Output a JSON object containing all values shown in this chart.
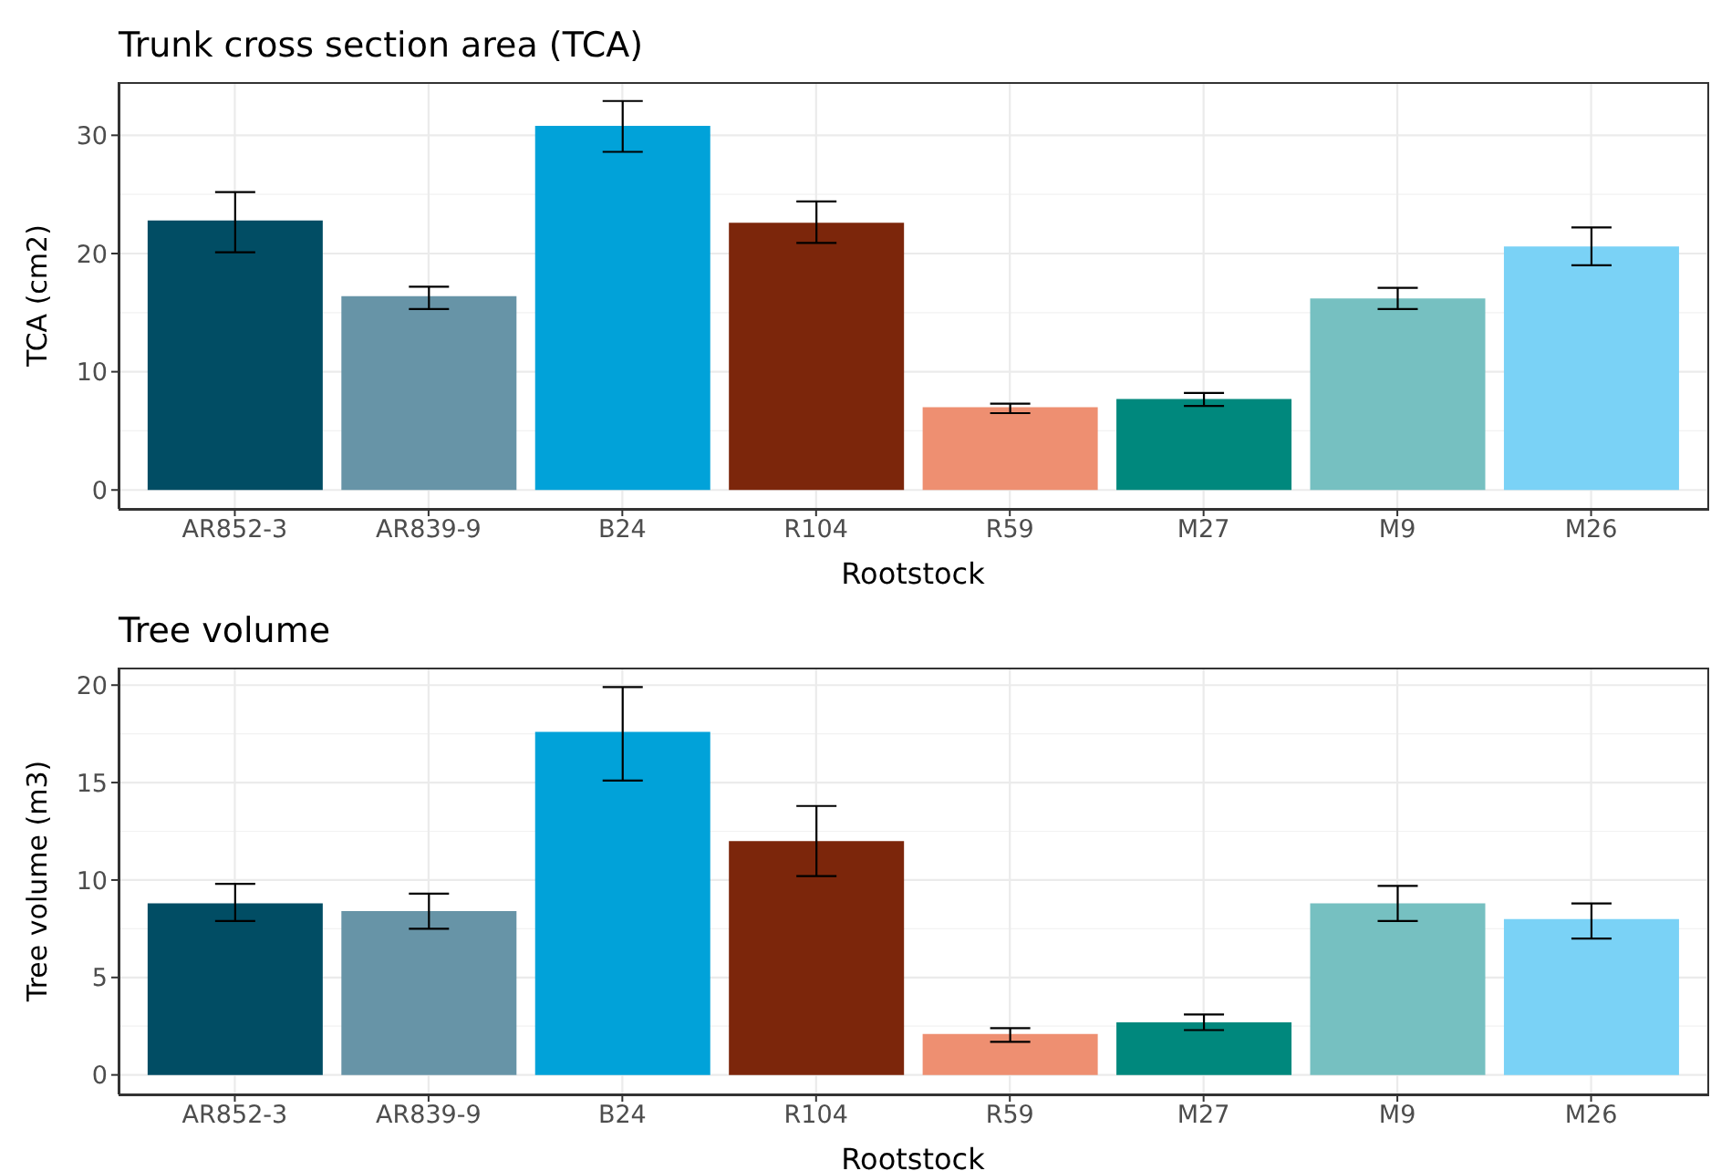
{
  "chart_data": [
    {
      "type": "bar",
      "title": "Trunk cross section area (TCA)",
      "xlabel": "Rootstock",
      "ylabel": "TCA (cm2)",
      "categories": [
        "AR852-3",
        "AR839-9",
        "B24",
        "R104",
        "R59",
        "M27",
        "M9",
        "M26"
      ],
      "values": [
        22.8,
        16.4,
        30.8,
        22.6,
        7.0,
        7.7,
        16.2,
        20.6
      ],
      "errors": [
        [
          20.1,
          25.2
        ],
        [
          15.3,
          17.2
        ],
        [
          28.6,
          32.9
        ],
        [
          20.9,
          24.4
        ],
        [
          6.5,
          7.3
        ],
        [
          7.1,
          8.2
        ],
        [
          15.3,
          17.1
        ],
        [
          19.0,
          22.2
        ]
      ],
      "colors": [
        "#014d64",
        "#6794a7",
        "#01a2d9",
        "#7c260b",
        "#ee8f71",
        "#00887d",
        "#76c0c1",
        "#7ad2f6"
      ],
      "ylim": [
        -1.6,
        34.5
      ],
      "yticks": [
        0,
        10,
        20,
        30
      ],
      "grid": true
    },
    {
      "type": "bar",
      "title": "Tree volume",
      "xlabel": "Rootstock",
      "ylabel": "Tree volume (m3)",
      "categories": [
        "AR852-3",
        "AR839-9",
        "B24",
        "R104",
        "R59",
        "M27",
        "M9",
        "M26"
      ],
      "values": [
        8.8,
        8.4,
        17.6,
        12.0,
        2.1,
        2.7,
        8.8,
        8.0
      ],
      "errors": [
        [
          7.9,
          9.8
        ],
        [
          7.5,
          9.3
        ],
        [
          15.1,
          19.9
        ],
        [
          10.2,
          13.8
        ],
        [
          1.7,
          2.4
        ],
        [
          2.3,
          3.1
        ],
        [
          7.9,
          9.7
        ],
        [
          7.0,
          8.8
        ]
      ],
      "colors": [
        "#014d64",
        "#6794a7",
        "#01a2d9",
        "#7c260b",
        "#ee8f71",
        "#00887d",
        "#76c0c1",
        "#7ad2f6"
      ],
      "ylim": [
        -1.0,
        20.9
      ],
      "yticks": [
        0,
        5,
        10,
        15,
        20
      ],
      "grid": true
    }
  ]
}
